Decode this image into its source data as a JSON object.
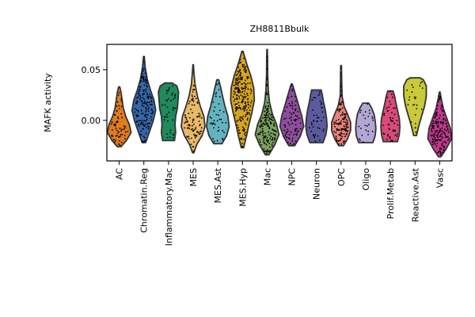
{
  "chart_data": {
    "type": "violin",
    "title": "ZH8811Bbulk",
    "xlabel": "",
    "ylabel": "MAFK activity",
    "ylim": [
      -0.04,
      0.075
    ],
    "yticks": [
      0.0,
      0.05
    ],
    "ytick_labels": [
      "0.00",
      "0.05"
    ],
    "grid": false,
    "categories": [
      "AC",
      "Chromatin.Reg",
      "Inflammatory.Mac",
      "MES",
      "MES.Ast",
      "MES.Hyp",
      "Mac",
      "NPC",
      "Neuron",
      "OPC",
      "Oligo",
      "Prolif.Metab",
      "Reactive.Ast",
      "Vasc"
    ],
    "series": [
      {
        "category": "AC",
        "color": "#e07b1f",
        "min": -0.026,
        "max": 0.033,
        "median": -0.008,
        "n": 60,
        "profile": [
          [
            -0.026,
            0.15
          ],
          [
            -0.02,
            0.6
          ],
          [
            -0.012,
            1.0
          ],
          [
            -0.004,
            0.85
          ],
          [
            0.004,
            0.55
          ],
          [
            0.012,
            0.35
          ],
          [
            0.02,
            0.25
          ],
          [
            0.028,
            0.15
          ],
          [
            0.033,
            0.05
          ]
        ]
      },
      {
        "category": "Chromatin.Reg",
        "color": "#3567a8",
        "min": -0.022,
        "max": 0.063,
        "median": 0.015,
        "n": 160,
        "profile": [
          [
            -0.022,
            0.15
          ],
          [
            -0.012,
            0.45
          ],
          [
            0.0,
            0.8
          ],
          [
            0.01,
            1.0
          ],
          [
            0.02,
            0.85
          ],
          [
            0.03,
            0.55
          ],
          [
            0.04,
            0.3
          ],
          [
            0.052,
            0.12
          ],
          [
            0.063,
            0.03
          ]
        ]
      },
      {
        "category": "Inflammatory.Mac",
        "color": "#1f8a5c",
        "min": -0.02,
        "max": 0.037,
        "median": 0.008,
        "n": 40,
        "profile": [
          [
            -0.02,
            0.5
          ],
          [
            -0.012,
            0.6
          ],
          [
            -0.004,
            0.55
          ],
          [
            0.004,
            0.6
          ],
          [
            0.012,
            0.75
          ],
          [
            0.02,
            0.8
          ],
          [
            0.028,
            0.85
          ],
          [
            0.034,
            0.7
          ],
          [
            0.037,
            0.3
          ]
        ]
      },
      {
        "category": "MES",
        "color": "#e8b967",
        "min": -0.032,
        "max": 0.055,
        "median": -0.005,
        "n": 90,
        "profile": [
          [
            -0.032,
            0.05
          ],
          [
            -0.024,
            0.3
          ],
          [
            -0.015,
            0.75
          ],
          [
            -0.006,
            1.0
          ],
          [
            0.004,
            0.9
          ],
          [
            0.014,
            0.6
          ],
          [
            0.024,
            0.35
          ],
          [
            0.036,
            0.15
          ],
          [
            0.046,
            0.07
          ],
          [
            0.055,
            0.02
          ]
        ]
      },
      {
        "category": "MES.Ast",
        "color": "#62b3bf",
        "min": -0.023,
        "max": 0.04,
        "median": 0.002,
        "n": 40,
        "profile": [
          [
            -0.023,
            0.35
          ],
          [
            -0.015,
            0.75
          ],
          [
            -0.006,
            0.95
          ],
          [
            0.004,
            0.85
          ],
          [
            0.014,
            0.6
          ],
          [
            0.024,
            0.4
          ],
          [
            0.032,
            0.25
          ],
          [
            0.04,
            0.08
          ]
        ]
      },
      {
        "category": "MES.Hyp",
        "color": "#d6a41e",
        "min": -0.027,
        "max": 0.068,
        "median": 0.022,
        "n": 220,
        "profile": [
          [
            -0.027,
            0.1
          ],
          [
            -0.015,
            0.35
          ],
          [
            -0.004,
            0.55
          ],
          [
            0.008,
            0.8
          ],
          [
            0.02,
            1.0
          ],
          [
            0.032,
            0.95
          ],
          [
            0.044,
            0.7
          ],
          [
            0.054,
            0.4
          ],
          [
            0.062,
            0.2
          ],
          [
            0.068,
            0.05
          ]
        ]
      },
      {
        "category": "Mac",
        "color": "#7aa05c",
        "min": -0.034,
        "max": 0.07,
        "median": -0.01,
        "n": 150,
        "profile": [
          [
            -0.034,
            0.15
          ],
          [
            -0.024,
            0.65
          ],
          [
            -0.014,
            1.0
          ],
          [
            -0.004,
            0.8
          ],
          [
            0.006,
            0.45
          ],
          [
            0.018,
            0.2
          ],
          [
            0.03,
            0.1
          ],
          [
            0.045,
            0.05
          ],
          [
            0.06,
            0.04
          ],
          [
            0.07,
            0.02
          ]
        ]
      },
      {
        "category": "NPC",
        "color": "#8e4e9c",
        "min": -0.025,
        "max": 0.036,
        "median": -0.002,
        "n": 80,
        "profile": [
          [
            -0.025,
            0.25
          ],
          [
            -0.016,
            0.7
          ],
          [
            -0.006,
            1.0
          ],
          [
            0.004,
            0.85
          ],
          [
            0.014,
            0.6
          ],
          [
            0.024,
            0.35
          ],
          [
            0.032,
            0.15
          ],
          [
            0.036,
            0.04
          ]
        ]
      },
      {
        "category": "Neuron",
        "color": "#5b5a9e",
        "min": -0.022,
        "max": 0.03,
        "median": 0.0,
        "n": 40,
        "profile": [
          [
            -0.022,
            0.55
          ],
          [
            -0.014,
            0.8
          ],
          [
            -0.006,
            0.9
          ],
          [
            0.002,
            0.85
          ],
          [
            0.01,
            0.75
          ],
          [
            0.018,
            0.6
          ],
          [
            0.025,
            0.5
          ],
          [
            0.03,
            0.4
          ]
        ]
      },
      {
        "category": "OPC",
        "color": "#e8827a",
        "min": -0.025,
        "max": 0.054,
        "median": -0.006,
        "n": 120,
        "profile": [
          [
            -0.025,
            0.2
          ],
          [
            -0.018,
            0.55
          ],
          [
            -0.01,
            0.8
          ],
          [
            -0.002,
            0.8
          ],
          [
            0.006,
            0.55
          ],
          [
            0.014,
            0.25
          ],
          [
            0.024,
            0.08
          ],
          [
            0.04,
            0.05
          ],
          [
            0.054,
            0.03
          ]
        ]
      },
      {
        "category": "Oligo",
        "color": "#b1a6d6",
        "min": -0.022,
        "max": 0.017,
        "median": -0.004,
        "n": 25,
        "profile": [
          [
            -0.022,
            0.6
          ],
          [
            -0.015,
            0.8
          ],
          [
            -0.008,
            0.85
          ],
          [
            -0.001,
            0.8
          ],
          [
            0.006,
            0.7
          ],
          [
            0.012,
            0.5
          ],
          [
            0.017,
            0.25
          ]
        ]
      },
      {
        "category": "Prolif.Metab",
        "color": "#d94a7b",
        "min": -0.021,
        "max": 0.029,
        "median": 0.0,
        "n": 50,
        "profile": [
          [
            -0.021,
            0.6
          ],
          [
            -0.014,
            0.75
          ],
          [
            -0.006,
            0.8
          ],
          [
            0.002,
            0.75
          ],
          [
            0.01,
            0.6
          ],
          [
            0.018,
            0.45
          ],
          [
            0.024,
            0.35
          ],
          [
            0.029,
            0.22
          ]
        ]
      },
      {
        "category": "Reactive.Ast",
        "color": "#c9c93a",
        "min": -0.015,
        "max": 0.042,
        "median": 0.018,
        "n": 25,
        "profile": [
          [
            -0.015,
            0.12
          ],
          [
            -0.006,
            0.3
          ],
          [
            0.004,
            0.55
          ],
          [
            0.014,
            0.8
          ],
          [
            0.024,
            0.95
          ],
          [
            0.034,
            0.95
          ],
          [
            0.04,
            0.7
          ],
          [
            0.042,
            0.4
          ]
        ]
      },
      {
        "category": "Vasc",
        "color": "#c2398f",
        "min": -0.036,
        "max": 0.028,
        "median": -0.012,
        "n": 160,
        "profile": [
          [
            -0.036,
            0.1
          ],
          [
            -0.028,
            0.55
          ],
          [
            -0.018,
            1.0
          ],
          [
            -0.008,
            0.9
          ],
          [
            0.002,
            0.6
          ],
          [
            0.012,
            0.3
          ],
          [
            0.022,
            0.12
          ],
          [
            0.028,
            0.03
          ]
        ]
      }
    ]
  }
}
